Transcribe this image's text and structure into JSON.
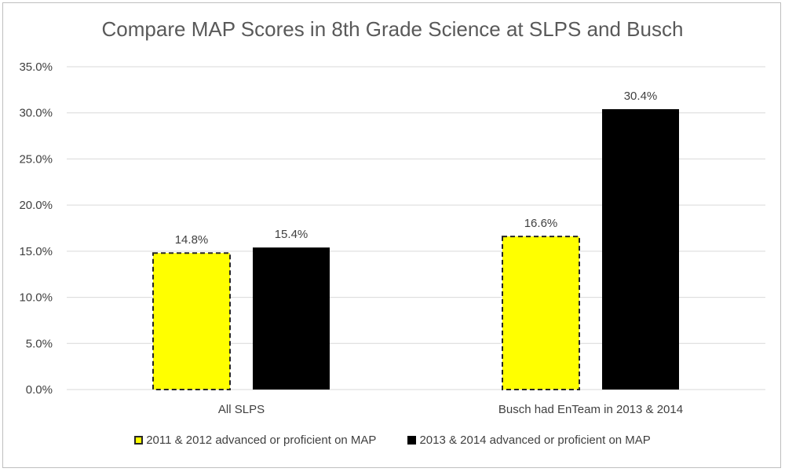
{
  "chart_data": {
    "type": "bar",
    "title": "Compare MAP Scores in 8th Grade Science at SLPS and Busch",
    "categories": [
      "All SLPS",
      "Busch had EnTeam in 2013 & 2014"
    ],
    "series": [
      {
        "name": "2011 & 2012 advanced or proficient on MAP",
        "values": [
          14.8,
          16.6
        ],
        "labels": [
          "14.8%",
          "16.6%"
        ],
        "color": "#ffff00",
        "border": "dashed"
      },
      {
        "name": "2013 & 2014 advanced or proficient on MAP",
        "values": [
          15.4,
          30.4
        ],
        "labels": [
          "15.4%",
          "30.4%"
        ],
        "color": "#000000",
        "border": "none"
      }
    ],
    "yticks": [
      "0.0%",
      "5.0%",
      "10.0%",
      "15.0%",
      "20.0%",
      "25.0%",
      "30.0%",
      "35.0%"
    ],
    "ylim": [
      0,
      35
    ],
    "grid": true,
    "legend_position": "bottom",
    "xlabel": "",
    "ylabel": ""
  }
}
